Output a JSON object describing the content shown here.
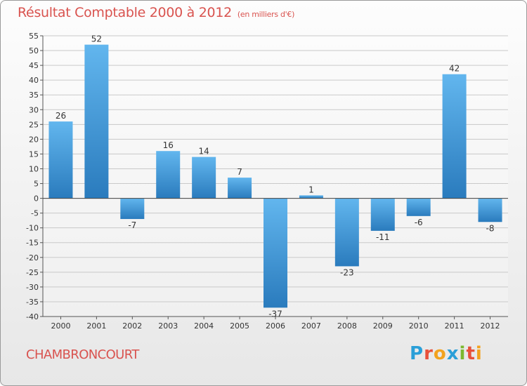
{
  "title": "Résultat Comptable 2000 à 2012",
  "unit_label": "(en milliers d'€)",
  "commune": "CHAMBRONCOURT",
  "brand": {
    "text": "Proxiti",
    "letters": [
      {
        "ch": "P",
        "color": "#2a9fd8"
      },
      {
        "ch": "r",
        "color": "#e8503a"
      },
      {
        "ch": "o",
        "color": "#f3a21d"
      },
      {
        "ch": "x",
        "color": "#2a9fd8"
      },
      {
        "ch": "i",
        "color": "#7cb82f"
      },
      {
        "ch": "t",
        "color": "#e8503a"
      },
      {
        "ch": "i",
        "color": "#f3a21d"
      }
    ]
  },
  "colors": {
    "title": "#d9534f",
    "bar_light": "#62b6ee",
    "bar_dark": "#2a7bbd",
    "grid": "#c9c9c9",
    "axis_text": "#333333"
  },
  "chart_data": {
    "type": "bar",
    "title": "Résultat Comptable 2000 à 2012",
    "xlabel": "",
    "ylabel": "",
    "categories": [
      "2000",
      "2001",
      "2002",
      "2003",
      "2004",
      "2005",
      "2006",
      "2007",
      "2008",
      "2009",
      "2010",
      "2011",
      "2012"
    ],
    "values": [
      26,
      52,
      -7,
      16,
      14,
      7,
      -37,
      1,
      -23,
      -11,
      -6,
      42,
      -8
    ],
    "data_labels": [
      "26",
      "52",
      "-7",
      "16",
      "14",
      "7",
      "-37",
      "1",
      "-23",
      "-11",
      "-6",
      "42",
      "-8"
    ],
    "ylim": [
      -40,
      55
    ],
    "yticks": [
      55,
      50,
      45,
      40,
      35,
      30,
      25,
      20,
      15,
      10,
      5,
      0,
      -5,
      -10,
      -15,
      -20,
      -25,
      -30,
      -35,
      -40
    ],
    "grid": true
  }
}
